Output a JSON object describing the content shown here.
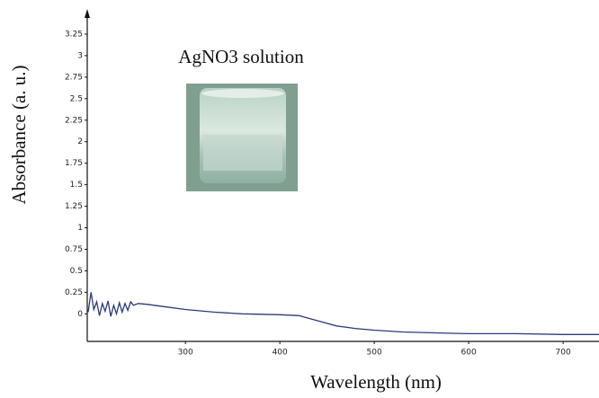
{
  "chart_data": {
    "type": "line",
    "annotation": "AgNO3 solution",
    "x_label": "Wavelength (nm)",
    "y_label": "Absorbance (a. u.)",
    "x": [
      197,
      200,
      203,
      206,
      209,
      212,
      215,
      218,
      221,
      224,
      227,
      230,
      233,
      236,
      239,
      242,
      245,
      250,
      260,
      280,
      300,
      330,
      360,
      400,
      420,
      440,
      460,
      480,
      500,
      530,
      560,
      600,
      650,
      700,
      738
    ],
    "series": [
      {
        "name": "AgNO3",
        "color": "#2b3a7c",
        "values": [
          0.02,
          0.25,
          0.05,
          0.14,
          -0.02,
          0.12,
          0.03,
          0.15,
          -0.03,
          0.1,
          0.0,
          0.13,
          0.02,
          0.12,
          0.04,
          0.14,
          0.1,
          0.12,
          0.11,
          0.08,
          0.05,
          0.02,
          0.0,
          -0.01,
          -0.02,
          -0.08,
          -0.14,
          -0.17,
          -0.19,
          -0.21,
          -0.22,
          -0.23,
          -0.23,
          -0.24,
          -0.24
        ]
      }
    ],
    "xlim": [
      196,
      738
    ],
    "ylim": [
      -0.32,
      3.5
    ],
    "xticks": [
      300,
      400,
      500,
      600,
      700
    ],
    "yticks": [
      0,
      0.25,
      0.5,
      0.75,
      1,
      1.25,
      1.5,
      1.75,
      2,
      2.25,
      2.5,
      2.75,
      3,
      3.25
    ],
    "grid": false
  }
}
